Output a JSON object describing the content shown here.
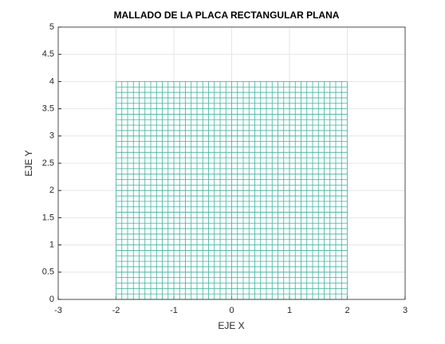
{
  "chart_data": {
    "type": "mesh",
    "title": "MALLADO DE LA PLACA RECTANGULAR PLANA",
    "xlabel": "EJE X",
    "ylabel": "EJE Y",
    "color": "#3bb3a0",
    "x": [
      -2,
      -1.9,
      -1.8,
      -1.7,
      -1.6,
      -1.5,
      -1.4,
      -1.3,
      -1.2,
      -1.1,
      -1,
      -0.9,
      -0.8,
      -0.7,
      -0.6,
      -0.5,
      -0.4,
      -0.3,
      -0.2,
      -0.1,
      0,
      0.1,
      0.2,
      0.3,
      0.4,
      0.5,
      0.6,
      0.7,
      0.8,
      0.9,
      1,
      1.1,
      1.2,
      1.3,
      1.4,
      1.5,
      1.6,
      1.7,
      1.8,
      1.9,
      2
    ],
    "y": [
      0,
      0.1,
      0.2,
      0.3,
      0.4,
      0.5,
      0.6,
      0.7,
      0.8,
      0.9,
      1,
      1.1,
      1.2,
      1.3,
      1.4,
      1.5,
      1.6,
      1.7,
      1.8,
      1.9,
      2,
      2.1,
      2.2,
      2.3,
      2.4,
      2.5,
      2.6,
      2.7,
      2.8,
      2.9,
      3,
      3.1,
      3.2,
      3.3,
      3.4,
      3.5,
      3.6,
      3.7,
      3.8,
      3.9,
      4
    ],
    "xlim": [
      -3,
      3
    ],
    "xticks": [
      -3,
      -2,
      -1,
      0,
      1,
      2,
      3
    ],
    "ylim": [
      0,
      5
    ],
    "yticks": [
      0,
      0.5,
      1,
      1.5,
      2,
      2.5,
      3,
      3.5,
      4,
      4.5,
      5
    ],
    "grid": true
  }
}
